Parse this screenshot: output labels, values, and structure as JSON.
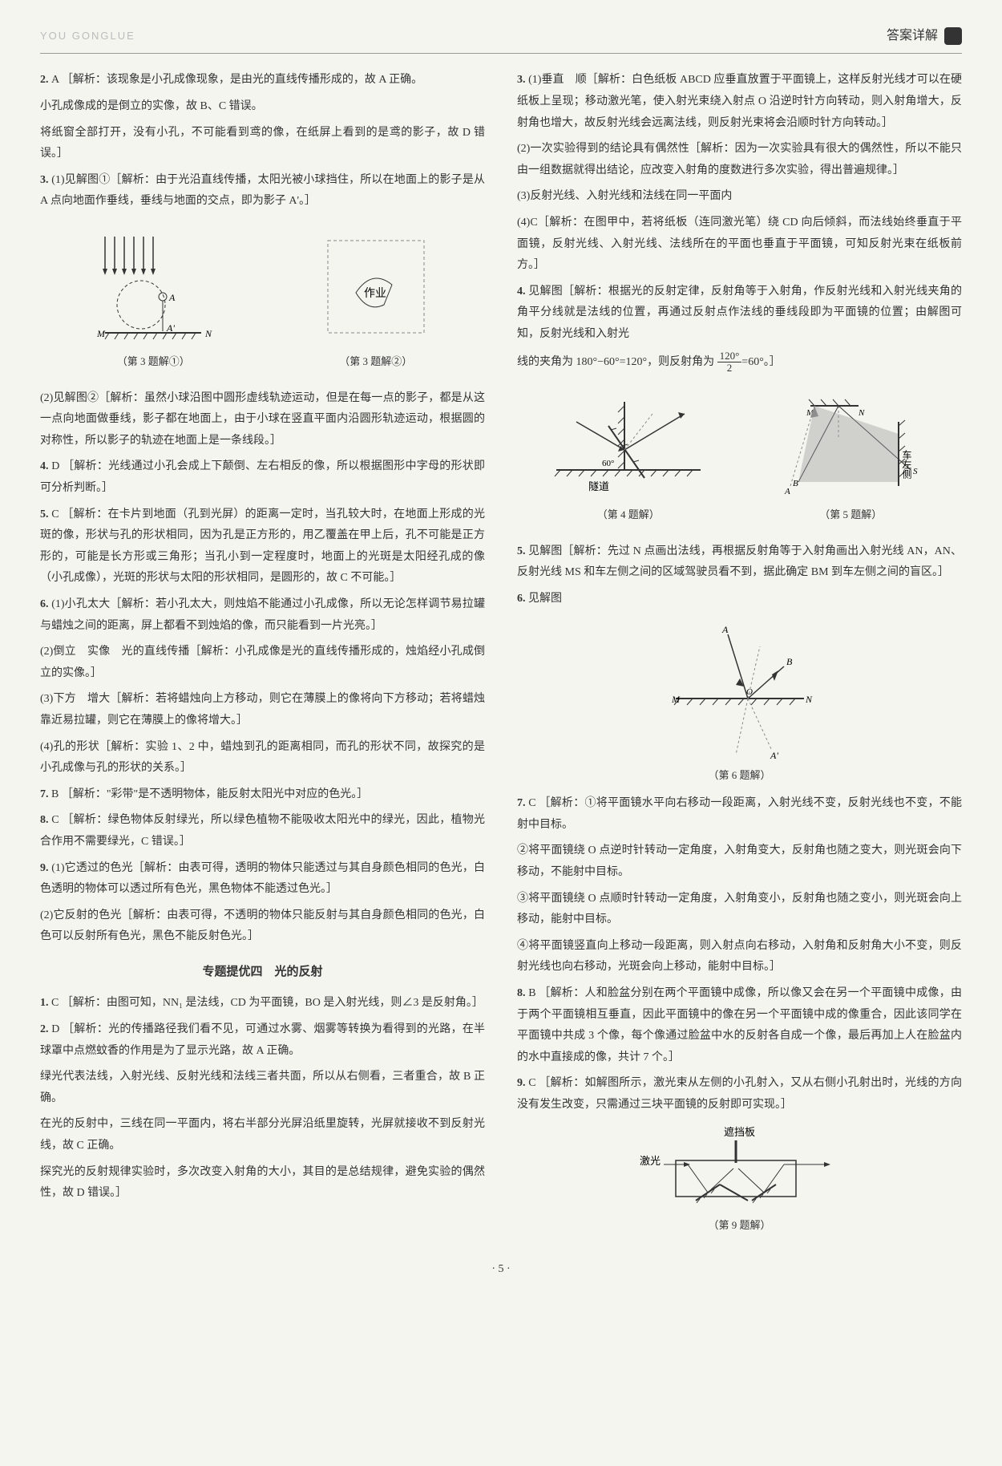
{
  "header": {
    "left": "YOU GONGLUE",
    "right": "答案详解"
  },
  "left_column": {
    "items": [
      {
        "num": "2.",
        "ans": "A",
        "text": "［解析：该现象是小孔成像现象，是由光的直线传播形成的，故 A 正确。"
      },
      {
        "sub": true,
        "text": "小孔成像成的是倒立的实像，故 B、C 错误。"
      },
      {
        "sub": true,
        "text": "将纸窗全部打开，没有小孔，不可能看到鸢的像，在纸屏上看到的是鸢的影子，故 D 错误。］"
      },
      {
        "num": "3.",
        "text": "(1)见解图①［解析：由于光沿直线传播，太阳光被小球挡住，所以在地面上的影子是从 A 点向地面作垂线，垂线与地面的交点，即为影子 A'。］"
      },
      {
        "fig": "fig_3"
      },
      {
        "sub": true,
        "text": "(2)见解图②［解析：虽然小球沿图中圆形虚线轨迹运动，但是在每一点的影子，都是从这一点向地面做垂线，影子都在地面上，由于小球在竖直平面内沿圆形轨迹运动，根据圆的对称性，所以影子的轨迹在地面上是一条线段。］"
      },
      {
        "num": "4.",
        "ans": "D",
        "text": "［解析：光线通过小孔会成上下颠倒、左右相反的像，所以根据图形中字母的形状即可分析判断。］"
      },
      {
        "num": "5.",
        "ans": "C",
        "text": "［解析：在卡片到地面（孔到光屏）的距离一定时，当孔较大时，在地面上形成的光斑的像，形状与孔的形状相同，因为孔是正方形的，用乙覆盖在甲上后，孔不可能是正方形的，可能是长方形或三角形；当孔小到一定程度时，地面上的光斑是太阳经孔成的像（小孔成像），光斑的形状与太阳的形状相同，是圆形的，故 C 不可能。］"
      },
      {
        "num": "6.",
        "text": "(1)小孔太大［解析：若小孔太大，则烛焰不能通过小孔成像，所以无论怎样调节易拉罐与蜡烛之间的距离，屏上都看不到烛焰的像，而只能看到一片光亮。］"
      },
      {
        "sub": true,
        "text": "(2)倒立　实像　光的直线传播［解析：小孔成像是光的直线传播形成的，烛焰经小孔成倒立的实像。］"
      },
      {
        "sub": true,
        "text": "(3)下方　增大［解析：若将蜡烛向上方移动，则它在薄膜上的像将向下方移动；若将蜡烛靠近易拉罐，则它在薄膜上的像将增大。］"
      },
      {
        "sub": true,
        "text": "(4)孔的形状［解析：实验 1、2 中，蜡烛到孔的距离相同，而孔的形状不同，故探究的是小孔成像与孔的形状的关系。］"
      },
      {
        "num": "7.",
        "ans": "B",
        "text": "［解析：\"彩带\"是不透明物体，能反射太阳光中对应的色光。］"
      },
      {
        "num": "8.",
        "ans": "C",
        "text": "［解析：绿色物体反射绿光，所以绿色植物不能吸收太阳光中的绿光，因此，植物光合作用不需要绿光，C 错误。］"
      },
      {
        "num": "9.",
        "text": "(1)它透过的色光［解析：由表可得，透明的物体只能透过与其自身颜色相同的色光，白色透明的物体可以透过所有色光，黑色物体不能透过色光。］"
      },
      {
        "sub": true,
        "text": "(2)它反射的色光［解析：由表可得，不透明的物体只能反射与其自身颜色相同的色光，白色可以反射所有色光，黑色不能反射色光。］"
      }
    ],
    "section_title": "专题提优四　光的反射",
    "section_items": [
      {
        "num": "1.",
        "ans": "C",
        "text": "［解析：由图可知，NN₁ 是法线，CD 为平面镜，BO 是入射光线，则∠3 是反射角。］"
      },
      {
        "num": "2.",
        "ans": "D",
        "text": "［解析：光的传播路径我们看不见，可通过水雾、烟雾等转换为看得到的光路，在半球罩中点燃蚊香的作用是为了显示光路，故 A 正确。"
      },
      {
        "sub": true,
        "text": "绿光代表法线，入射光线、反射光线和法线三者共面，所以从右侧看，三者重合，故 B 正确。"
      },
      {
        "sub": true,
        "text": "在光的反射中，三线在同一平面内，将右半部分光屏沿纸里旋转，光屏就接收不到反射光线，故 C 正确。"
      },
      {
        "sub": true,
        "text": "探究光的反射规律实验时，多次改变入射角的大小，其目的是总结规律，避免实验的偶然性，故 D 错误。］"
      }
    ]
  },
  "right_column": {
    "items": [
      {
        "num": "3.",
        "text": "(1)垂直　顺［解析：白色纸板 ABCD 应垂直放置于平面镜上，这样反射光线才可以在硬纸板上呈现；移动激光笔，使入射光束绕入射点 O 沿逆时针方向转动，则入射角增大，反射角也增大，故反射光线会远离法线，则反射光束将会沿顺时针方向转动。］"
      },
      {
        "sub": true,
        "text": "(2)一次实验得到的结论具有偶然性［解析：因为一次实验具有很大的偶然性，所以不能只由一组数据就得出结论，应改变入射角的度数进行多次实验，得出普遍规律。］"
      },
      {
        "sub": true,
        "text": "(3)反射光线、入射光线和法线在同一平面内"
      },
      {
        "sub": true,
        "text": "(4)C［解析：在图甲中，若将纸板（连同激光笔）绕 CD 向后倾斜，而法线始终垂直于平面镜，反射光线、入射光线、法线所在的平面也垂直于平面镜，可知反射光束在纸板前方。］"
      },
      {
        "num": "4.",
        "text": "见解图［解析：根据光的反射定律，反射角等于入射角，作反射光线和入射光线夹角的角平分线就是法线的位置，再通过反射点作法线的垂线段即为平面镜的位置；由解图可知，反射光线和入射光"
      },
      {
        "sub": true,
        "text_with_frac": true,
        "pre": "线的夹角为 180°−60°=120°，则反射角为 ",
        "frac_num": "120°",
        "frac_den": "2",
        "post": "=60°。］"
      },
      {
        "fig": "fig_4_5"
      },
      {
        "num": "5.",
        "text": "见解图［解析：先过 N 点画出法线，再根据反射角等于入射角画出入射光线 AN，AN、反射光线 MS 和车左侧之间的区域驾驶员看不到，据此确定 BM 到车左侧之间的盲区。］"
      },
      {
        "num": "6.",
        "text": "见解图"
      },
      {
        "fig": "fig_6"
      },
      {
        "num": "7.",
        "ans": "C",
        "text": "［解析：①将平面镜水平向右移动一段距离，入射光线不变，反射光线也不变，不能射中目标。"
      },
      {
        "sub": true,
        "text": "②将平面镜绕 O 点逆时针转动一定角度，入射角变大，反射角也随之变大，则光斑会向下移动，不能射中目标。"
      },
      {
        "sub": true,
        "text": "③将平面镜绕 O 点顺时针转动一定角度，入射角变小，反射角也随之变小，则光斑会向上移动，能射中目标。"
      },
      {
        "sub": true,
        "text": "④将平面镜竖直向上移动一段距离，则入射点向右移动，入射角和反射角大小不变，则反射光线也向右移动，光斑会向上移动，能射中目标。］"
      },
      {
        "num": "8.",
        "ans": "B",
        "text": "［解析：人和脸盆分别在两个平面镜中成像，所以像又会在另一个平面镜中成像，由于两个平面镜相互垂直，因此平面镜中的像在另一个平面镜中成的像重合，因此该同学在平面镜中共成 3 个像，每个像通过脸盆中水的反射各自成一个像，最后再加上人在脸盆内的水中直接成的像，共计 7 个。］"
      },
      {
        "num": "9.",
        "ans": "C",
        "text": "［解析：如解图所示，激光束从左侧的小孔射入，又从右侧小孔射出时，光线的方向没有发生改变，只需通过三块平面镜的反射即可实现。］"
      },
      {
        "fig": "fig_9"
      }
    ]
  },
  "figures": {
    "fig_3_cap1": "（第 3 题解①）",
    "fig_3_cap2": "（第 3 题解②）",
    "fig_4_cap": "（第 4 题解）",
    "fig_5_cap": "（第 5 题解）",
    "fig_6_cap": "（第 6 题解）",
    "fig_9_cap": "（第 9 题解）",
    "fig_9_label_top": "遮挡板",
    "fig_9_label_left": "激光",
    "fig_4_label": "隧道",
    "fig_5_label": "车左侧"
  },
  "page_number": "· 5 ·",
  "colors": {
    "text": "#333333",
    "bg": "#f5f5f0",
    "dash": "#888888"
  }
}
